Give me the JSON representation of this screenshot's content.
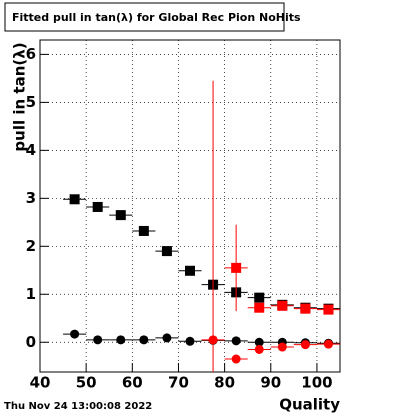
{
  "chart_data": {
    "type": "scatter",
    "title": "Fitted pull in tan(λ) for Global Rec Pion NoHits",
    "x_label": "Quality",
    "y_label": "pull in tan(λ)",
    "timestamp": "Thu Nov 24 13:00:08 2022",
    "x": [
      47.5,
      52.5,
      57.5,
      62.5,
      67.5,
      72.5,
      77.5,
      82.5,
      87.5,
      92.5,
      97.5,
      102.5
    ],
    "series": [
      {
        "color": "#000000",
        "marker": "square",
        "values": [
          2.98,
          2.82,
          2.65,
          2.32,
          1.9,
          1.49,
          1.2,
          1.04,
          0.93,
          0.78,
          0.72,
          0.7
        ]
      },
      {
        "color": "#000000",
        "marker": "circle",
        "values": [
          0.17,
          0.05,
          0.05,
          0.05,
          0.09,
          0.02,
          0.04,
          0.03,
          0.0,
          0.0,
          -0.01,
          -0.02
        ]
      },
      {
        "color": "#ff0000",
        "marker": "square",
        "values": [
          null,
          null,
          null,
          null,
          null,
          null,
          null,
          1.55,
          0.72,
          0.76,
          0.7,
          0.68
        ],
        "errors": [
          null,
          null,
          null,
          null,
          null,
          null,
          null,
          0.9,
          0.05,
          0.05,
          0.05,
          0.05
        ]
      },
      {
        "color": "#ff0000",
        "marker": "circle",
        "values": [
          null,
          null,
          null,
          null,
          null,
          null,
          0.05,
          -0.35,
          -0.15,
          -0.1,
          -0.05,
          -0.04
        ],
        "errors": [
          null,
          null,
          null,
          null,
          null,
          null,
          5.4,
          0.05,
          0.05,
          0.05,
          0.05,
          0.05
        ]
      }
    ],
    "xlim": [
      40,
      105
    ],
    "ylim": [
      -0.62,
      6.3
    ],
    "xticks": [
      40,
      50,
      60,
      70,
      80,
      90,
      100
    ],
    "yticks": [
      0,
      1,
      2,
      3,
      4,
      5,
      6
    ],
    "grid": true
  }
}
